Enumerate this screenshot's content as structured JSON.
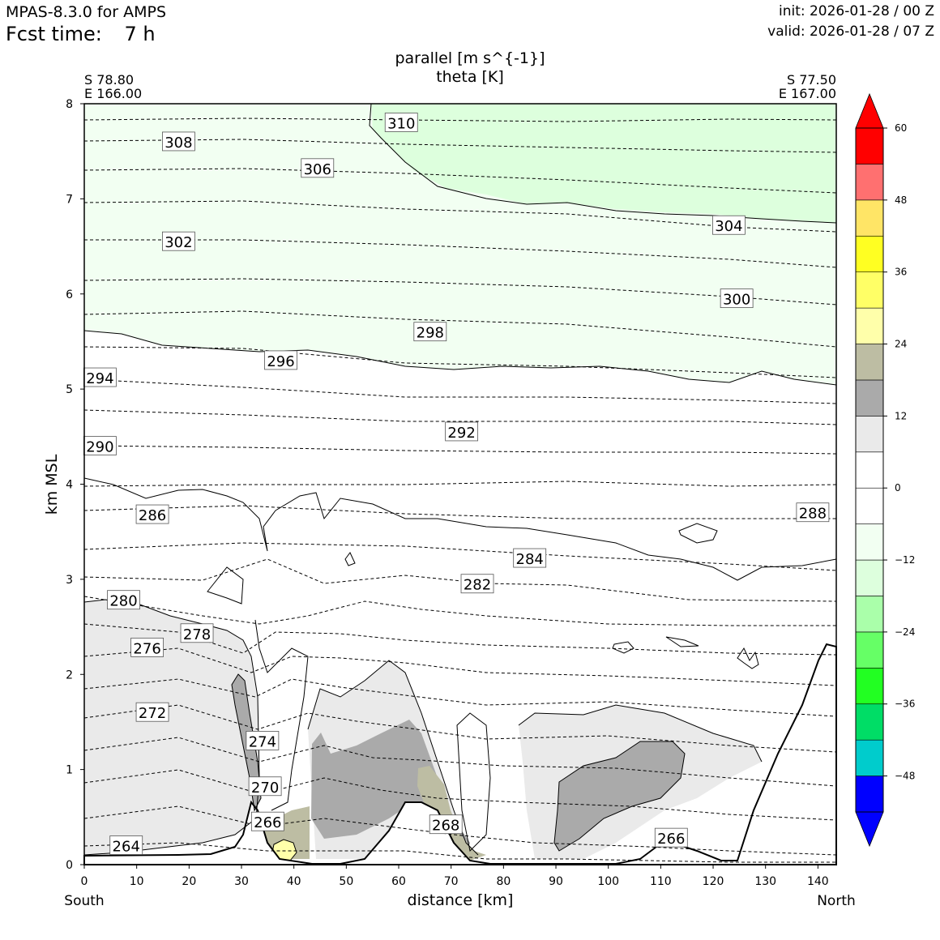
{
  "header": {
    "model": "MPAS-8.3.0 for AMPS",
    "fcst_label": "Fcst time:",
    "fcst_value": "7 h",
    "init": "init: 2026-01-28 / 00 Z",
    "valid": "valid: 2026-01-28 / 07 Z"
  },
  "chart_data": {
    "type": "cross-section",
    "title_line1": "parallel [m s^{-1}]",
    "title_line2": "theta [K]",
    "xlabel": "distance [km]",
    "ylabel": "km MSL",
    "xlim": [
      0,
      143.5
    ],
    "ylim": [
      0,
      8
    ],
    "x_ticks": [
      0,
      10,
      20,
      30,
      40,
      50,
      60,
      70,
      80,
      90,
      100,
      110,
      120,
      130,
      140
    ],
    "y_ticks": [
      0,
      1,
      2,
      3,
      4,
      5,
      6,
      7,
      8
    ],
    "left_endpoint": [
      "S 78.80",
      "E 166.00"
    ],
    "right_endpoint": [
      "S 77.50",
      "E 167.00"
    ],
    "left_direction": "South",
    "right_direction": "North",
    "colorbar": {
      "bounds": [
        -54,
        -48,
        -42,
        -36,
        -30,
        -24,
        -18,
        -12,
        -6,
        0,
        6,
        12,
        18,
        24,
        30,
        36,
        42,
        48,
        54,
        60
      ],
      "colors": [
        "#0000ff",
        "#00cccc",
        "#00dd66",
        "#22ff22",
        "#66ff66",
        "#aaffaa",
        "#ddffdd",
        "#f2fff2",
        "#ffffff",
        "#ffffff",
        "#eaeaea",
        "#aaaaaa",
        "#bdbda3",
        "#ffffaa",
        "#ffff66",
        "#ffff22",
        "#ffe566",
        "#ff7070",
        "#ff0000"
      ],
      "tick_labels": [
        "−48",
        "−36",
        "−24",
        "−12",
        "0",
        "12",
        "24",
        "36",
        "48",
        "60"
      ],
      "tick_values": [
        -48,
        -36,
        -24,
        -12,
        0,
        12,
        24,
        36,
        48,
        60
      ]
    },
    "theta_contours": [
      {
        "label": "310",
        "x": 60.5,
        "y": 7.8
      },
      {
        "label": "308",
        "x": 18.0,
        "y": 7.6
      },
      {
        "label": "306",
        "x": 44.5,
        "y": 7.32
      },
      {
        "label": "304",
        "x": 123.0,
        "y": 6.72
      },
      {
        "label": "302",
        "x": 18.0,
        "y": 6.55
      },
      {
        "label": "300",
        "x": 124.5,
        "y": 5.95
      },
      {
        "label": "298",
        "x": 66.0,
        "y": 5.6
      },
      {
        "label": "296",
        "x": 37.5,
        "y": 5.3
      },
      {
        "label": "294",
        "x": 3.0,
        "y": 5.12
      },
      {
        "label": "292",
        "x": 72.0,
        "y": 4.55
      },
      {
        "label": "290",
        "x": 3.0,
        "y": 4.4
      },
      {
        "label": "288",
        "x": 139.0,
        "y": 3.7
      },
      {
        "label": "286",
        "x": 13.0,
        "y": 3.68
      },
      {
        "label": "284",
        "x": 85.0,
        "y": 3.22
      },
      {
        "label": "282",
        "x": 75.0,
        "y": 2.95
      },
      {
        "label": "280",
        "x": 7.5,
        "y": 2.78
      },
      {
        "label": "278",
        "x": 21.5,
        "y": 2.43
      },
      {
        "label": "276",
        "x": 12.0,
        "y": 2.28
      },
      {
        "label": "272",
        "x": 13.0,
        "y": 1.6
      },
      {
        "label": "274",
        "x": 34.0,
        "y": 1.3
      },
      {
        "label": "270",
        "x": 34.5,
        "y": 0.82
      },
      {
        "label": "266",
        "x": 35.0,
        "y": 0.45
      },
      {
        "label": "268",
        "x": 69.0,
        "y": 0.42
      },
      {
        "label": "266",
        "x": 112.0,
        "y": 0.28
      },
      {
        "label": "264",
        "x": 8.0,
        "y": 0.2
      }
    ]
  }
}
